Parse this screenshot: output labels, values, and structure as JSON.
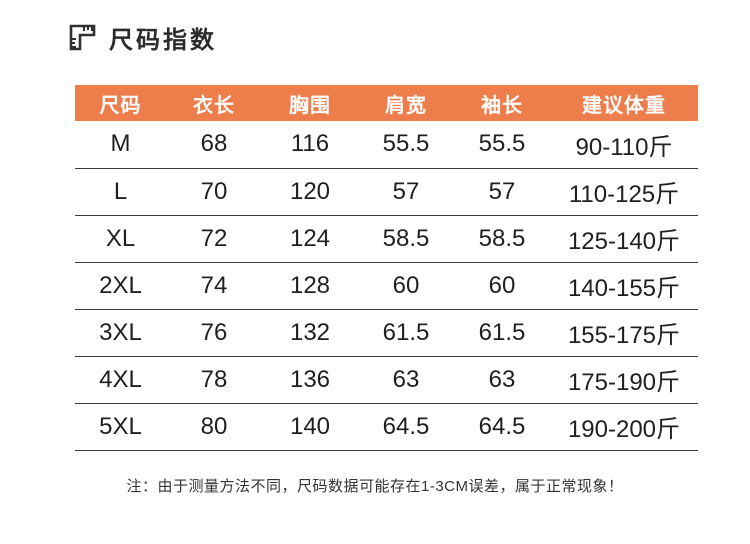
{
  "header": {
    "title": "尺码指数",
    "icon": "ruler-icon"
  },
  "chart_data": {
    "type": "table",
    "title": "尺码指数",
    "columns": [
      "尺码",
      "衣长",
      "胸围",
      "肩宽",
      "袖长",
      "建议体重"
    ],
    "rows": [
      [
        "M",
        "68",
        "116",
        "55.5",
        "55.5",
        "90-110斤"
      ],
      [
        "L",
        "70",
        "120",
        "57",
        "57",
        "110-125斤"
      ],
      [
        "XL",
        "72",
        "124",
        "58.5",
        "58.5",
        "125-140斤"
      ],
      [
        "2XL",
        "74",
        "128",
        "60",
        "60",
        "140-155斤"
      ],
      [
        "3XL",
        "76",
        "132",
        "61.5",
        "61.5",
        "155-175斤"
      ],
      [
        "4XL",
        "78",
        "136",
        "63",
        "63",
        "175-190斤"
      ],
      [
        "5XL",
        "80",
        "140",
        "64.5",
        "64.5",
        "190-200斤"
      ]
    ],
    "legend_position": "none",
    "grid": "horizontal-row-dividers"
  },
  "note": {
    "text": "注：由于测量方法不同，尺码数据可能存在1-3CM误差，属于正常现象！"
  },
  "colors": {
    "header_bg": "#ED7D4A",
    "header_text": "#FFFFFF",
    "row_divider": "#3A3A3A",
    "body_text": "#1F1F1F",
    "title_text": "#2B2B2B"
  }
}
